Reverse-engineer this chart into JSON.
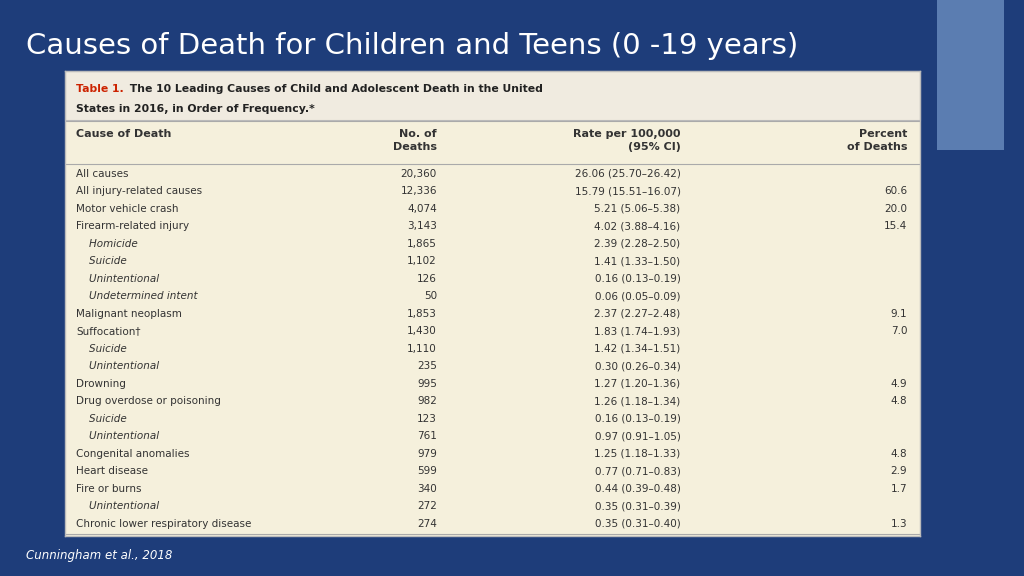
{
  "title": "Causes of Death for Children and Teens (0 -19 years)",
  "subtitle_bold": "Table 1.",
  "subtitle_rest": " The 10 Leading Causes of Child and Adolescent Death in the United States in 2016, in Order of Frequency.*",
  "bg_color_top": "#1e3d7a",
  "bg_color_bottom": "#1a3570",
  "table_bg": "#f5f0dc",
  "header_row": [
    "Cause of Death",
    "No. of\nDeaths",
    "Rate per 100,000\n(95% CI)",
    "Percent\nof Deaths"
  ],
  "rows": [
    [
      "All causes",
      "20,360",
      "26.06 (25.70–26.42)",
      ""
    ],
    [
      "All injury-related causes",
      "12,336",
      "15.79 (15.51–16.07)",
      "60.6"
    ],
    [
      "Motor vehicle crash",
      "4,074",
      "5.21 (5.06–5.38)",
      "20.0"
    ],
    [
      "Firearm-related injury",
      "3,143",
      "4.02 (3.88–4.16)",
      "15.4"
    ],
    [
      "    Homicide",
      "1,865",
      "2.39 (2.28–2.50)",
      ""
    ],
    [
      "    Suicide",
      "1,102",
      "1.41 (1.33–1.50)",
      ""
    ],
    [
      "    Unintentional",
      "126",
      "0.16 (0.13–0.19)",
      ""
    ],
    [
      "    Undetermined intent",
      "50",
      "0.06 (0.05–0.09)",
      ""
    ],
    [
      "Malignant neoplasm",
      "1,853",
      "2.37 (2.27–2.48)",
      "9.1"
    ],
    [
      "Suffocation†",
      "1,430",
      "1.83 (1.74–1.93)",
      "7.0"
    ],
    [
      "    Suicide",
      "1,110",
      "1.42 (1.34–1.51)",
      ""
    ],
    [
      "    Unintentional",
      "235",
      "0.30 (0.26–0.34)",
      ""
    ],
    [
      "Drowning",
      "995",
      "1.27 (1.20–1.36)",
      "4.9"
    ],
    [
      "Drug overdose or poisoning",
      "982",
      "1.26 (1.18–1.34)",
      "4.8"
    ],
    [
      "    Suicide",
      "123",
      "0.16 (0.13–0.19)",
      ""
    ],
    [
      "    Unintentional",
      "761",
      "0.97 (0.91–1.05)",
      ""
    ],
    [
      "Congenital anomalies",
      "979",
      "1.25 (1.18–1.33)",
      "4.8"
    ],
    [
      "Heart disease",
      "599",
      "0.77 (0.71–0.83)",
      "2.9"
    ],
    [
      "Fire or burns",
      "340",
      "0.44 (0.39–0.48)",
      "1.7"
    ],
    [
      "    Unintentional",
      "272",
      "0.35 (0.31–0.39)",
      ""
    ],
    [
      "Chronic lower respiratory disease",
      "274",
      "0.35 (0.31–0.40)",
      "1.3"
    ]
  ],
  "footer": "Cunningham et al., 2018",
  "accent_color": "#5b7db1",
  "title_color": "#ffffff",
  "subtitle_color_bold": "#cc2200",
  "subtitle_color_rest": "#222222",
  "table_text_color": "#333333",
  "header_text_color": "#333333"
}
